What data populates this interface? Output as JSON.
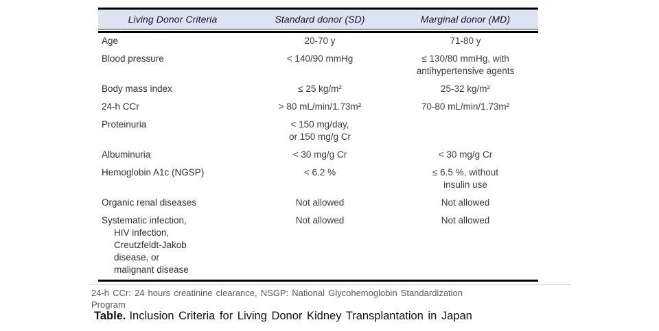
{
  "table": {
    "header_bg": "#dde3f1",
    "header": {
      "col_criteria": "Living Donor Criteria",
      "col_sd": "Standard donor (SD)",
      "col_md": "Marginal donor (MD)"
    },
    "rows": [
      {
        "criteria": [
          "Age"
        ],
        "sd": [
          "20-70 y"
        ],
        "md": [
          "71-80 y"
        ]
      },
      {
        "criteria": [
          "Blood pressure"
        ],
        "sd": [
          "< 140/90 mmHg"
        ],
        "md": [
          "≤ 130/80 mmHg, with",
          "antihypertensive agents"
        ]
      },
      {
        "criteria": [
          "Body mass index"
        ],
        "sd": [
          "≤ 25 kg/m²"
        ],
        "md": [
          "25-32 kg/m²"
        ]
      },
      {
        "criteria": [
          "24-h CCr"
        ],
        "sd": [
          "> 80 mL/min/1.73m²"
        ],
        "md": [
          "70-80 mL/min/1.73m²"
        ]
      },
      {
        "criteria": [
          "Proteinuria"
        ],
        "sd": [
          "< 150 mg/day,",
          "or 150 mg/g Cr"
        ],
        "md": []
      },
      {
        "criteria": [
          "Albuminuria"
        ],
        "sd": [
          "< 30 mg/g Cr"
        ],
        "md": [
          "< 30 mg/g Cr"
        ]
      },
      {
        "criteria": [
          "Hemoglobin A1c (NGSP)"
        ],
        "sd": [
          "< 6.2 %"
        ],
        "md": [
          "≤ 6.5 %, without",
          "insulin use"
        ]
      },
      {
        "criteria": [
          "Organic renal diseases"
        ],
        "sd": [
          "Not allowed"
        ],
        "md": [
          "Not allowed"
        ]
      },
      {
        "criteria": [
          "Systematic infection,",
          "HIV infection,",
          "Creutzfeldt-Jakob",
          "disease, or",
          "malignant disease"
        ],
        "sd": [
          "Not allowed"
        ],
        "md": [
          "Not allowed"
        ]
      }
    ]
  },
  "footnote": {
    "lines": [
      "24-h CCr: 24 hours creatinine clearance, NSGP: National Glycohemoglobin Standardization",
      "Program"
    ]
  },
  "caption": {
    "label": "Table.",
    "text": "Inclusion Criteria for Living Donor Kidney Transplantation in Japan"
  }
}
